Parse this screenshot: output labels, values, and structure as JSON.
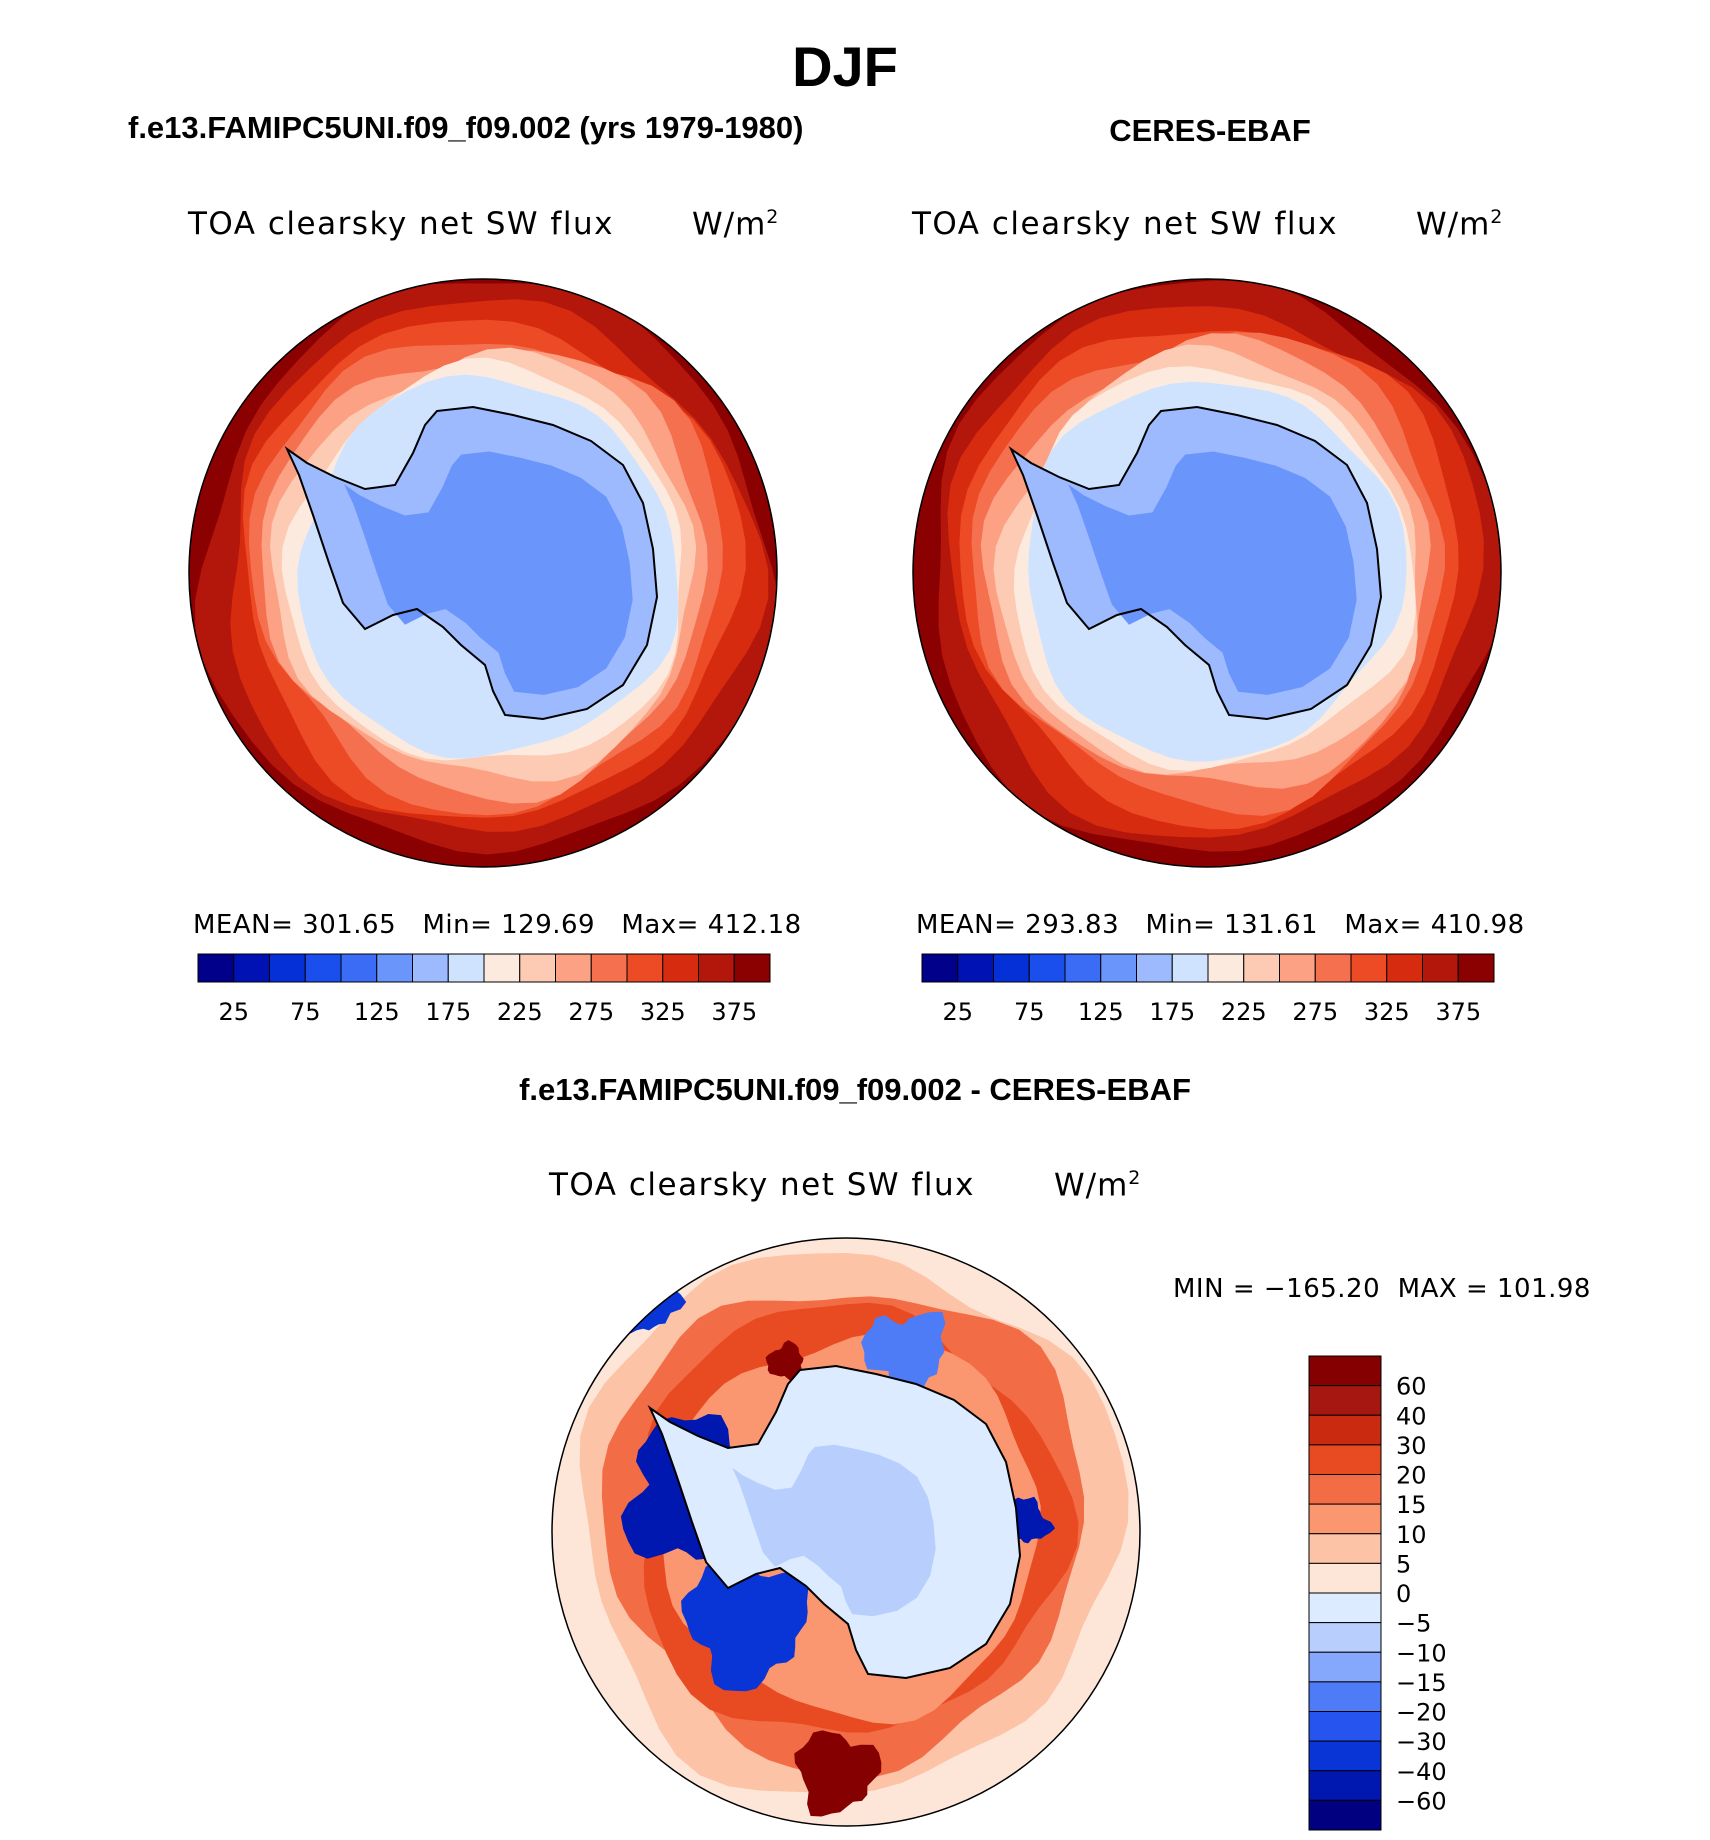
{
  "title": "DJF",
  "colors": {
    "ocean_high": "#8b0000",
    "land_ice": "#8faeff",
    "coastline": "#000000",
    "scale": [
      "#00008b",
      "#0012b4",
      "#0530d8",
      "#1a4fed",
      "#3a6cf5",
      "#6a95fb",
      "#9dbafe",
      "#cfe3ff",
      "#fdeadf",
      "#fdcab3",
      "#fca184",
      "#f5704f",
      "#ed4a26",
      "#d72b10",
      "#b3170c",
      "#8b0000"
    ],
    "diff_scale": [
      "#000080",
      "#0018b0",
      "#0a35d6",
      "#2555ee",
      "#4d7cf6",
      "#85a8fd",
      "#b8cffe",
      "#dcebff",
      "#fde6d8",
      "#fcc3a6",
      "#fa9670",
      "#f26c45",
      "#e84a22",
      "#c92a10",
      "#a51710",
      "#850000"
    ]
  },
  "panels": {
    "model": {
      "heading": "f.e13.FAMIPC5UNI.f09_f09.002 (yrs 1979-1980)",
      "variable": "TOA clearsky net SW flux",
      "units_base": "W/m",
      "units_exp": "2",
      "mean_label": "MEAN=",
      "mean": "301.65",
      "min_label": "Min=",
      "min": "129.69",
      "max_label": "Max=",
      "max": "412.18"
    },
    "obs": {
      "heading": "CERES-EBAF",
      "variable": "TOA clearsky net SW flux",
      "units_base": "W/m",
      "units_exp": "2",
      "mean_label": "MEAN=",
      "mean": "293.83",
      "min_label": "Min=",
      "min": "131.61",
      "max_label": "Max=",
      "max": "410.98"
    },
    "diff": {
      "heading": "f.e13.FAMIPC5UNI.f09_f09.002 - CERES-EBAF",
      "variable": "TOA clearsky net SW flux",
      "units_base": "W/m",
      "units_exp": "2",
      "minmax_text": "MIN = −165.20  MAX = 101.98"
    }
  },
  "chart_data": [
    {
      "type": "heatmap",
      "projection": "south polar stereographic",
      "title": "f.e13.FAMIPC5UNI.f09_f09.002 (yrs 1979-1980)",
      "variable": "TOA clearsky net SW flux",
      "units": "W/m2",
      "mean": 301.65,
      "min": 129.69,
      "max": 412.18,
      "contour_levels": [
        25,
        50,
        75,
        100,
        125,
        150,
        175,
        200,
        225,
        250,
        275,
        300,
        325,
        350,
        375
      ],
      "colorbar_ticks": [
        "25",
        "75",
        "125",
        "175",
        "225",
        "275",
        "325",
        "375"
      ]
    },
    {
      "type": "heatmap",
      "projection": "south polar stereographic",
      "title": "CERES-EBAF",
      "variable": "TOA clearsky net SW flux",
      "units": "W/m2",
      "mean": 293.83,
      "min": 131.61,
      "max": 410.98,
      "contour_levels": [
        25,
        50,
        75,
        100,
        125,
        150,
        175,
        200,
        225,
        250,
        275,
        300,
        325,
        350,
        375
      ],
      "colorbar_ticks": [
        "25",
        "75",
        "125",
        "175",
        "225",
        "275",
        "325",
        "375"
      ]
    },
    {
      "type": "heatmap",
      "projection": "south polar stereographic",
      "title": "f.e13.FAMIPC5UNI.f09_f09.002 - CERES-EBAF",
      "variable": "TOA clearsky net SW flux",
      "units": "W/m2",
      "min": -165.2,
      "max": 101.98,
      "contour_levels": [
        -60,
        -40,
        -30,
        -20,
        -15,
        -10,
        -5,
        0,
        5,
        10,
        15,
        20,
        30,
        40,
        60
      ],
      "colorbar_ticks": [
        "60",
        "40",
        "30",
        "20",
        "15",
        "10",
        "5",
        "0",
        "−5",
        "−10",
        "−15",
        "−20",
        "−30",
        "−40",
        "−60"
      ]
    }
  ]
}
